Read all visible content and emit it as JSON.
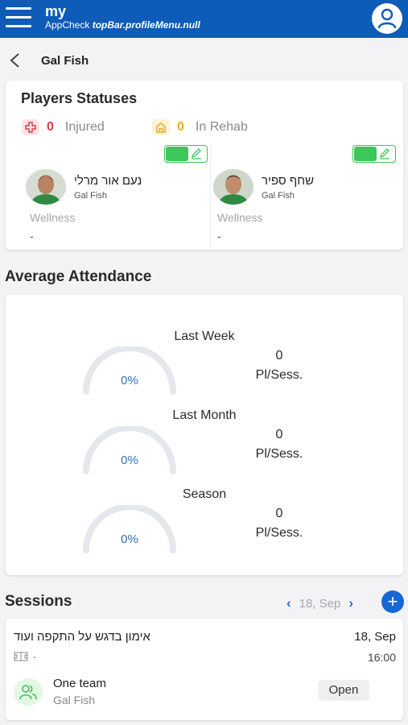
{
  "topbar": {
    "brand": "my",
    "subtitle_prefix": "AppCheck",
    "subtitle_key": "topBar.profileMenu.null",
    "menu_icon": "hamburger-menu-icon",
    "profile_icon": "user-profile-icon"
  },
  "header": {
    "back_icon": "chevron-left-icon",
    "title": "Gal Fish"
  },
  "players": {
    "title": "Players Statuses",
    "injured": {
      "count": "0",
      "label": "Injured",
      "color": "#e23a4a",
      "icon": "medical-cross-icon"
    },
    "rehab": {
      "count": "0",
      "label": "In Rehab",
      "color": "#e8b021",
      "icon": "rehab-house-icon"
    },
    "list": [
      {
        "name": "נעם אור מרלי",
        "team": "Gal Fish",
        "metric_label": "Wellness",
        "metric_value": "-"
      },
      {
        "name": "שחף ספיר",
        "team": "Gal Fish",
        "metric_label": "Wellness",
        "metric_value": "-"
      }
    ]
  },
  "attendance": {
    "title": "Average Attendance",
    "periods": [
      {
        "label": "Last Week",
        "percent": "0%",
        "count": "0",
        "unit": "Pl/Sess."
      },
      {
        "label": "Last Month",
        "percent": "0%",
        "count": "0",
        "unit": "Pl/Sess."
      },
      {
        "label": "Season",
        "percent": "0%",
        "count": "0",
        "unit": "Pl/Sess."
      }
    ]
  },
  "sessions": {
    "title": "Sessions",
    "date_nav": "18, Sep",
    "add_label": "+",
    "items": [
      {
        "name": "אימון בדגש על התקפה ועוד",
        "date": "18, Sep",
        "time": "16:00",
        "meta": "-",
        "team": "One team",
        "team_sub": "Gal Fish",
        "status": "Open"
      }
    ]
  },
  "colors": {
    "primary": "#0e5bb8",
    "accent": "#1668d6",
    "toggle_on": "#3cc759",
    "gauge_text": "#2f6fb1"
  }
}
